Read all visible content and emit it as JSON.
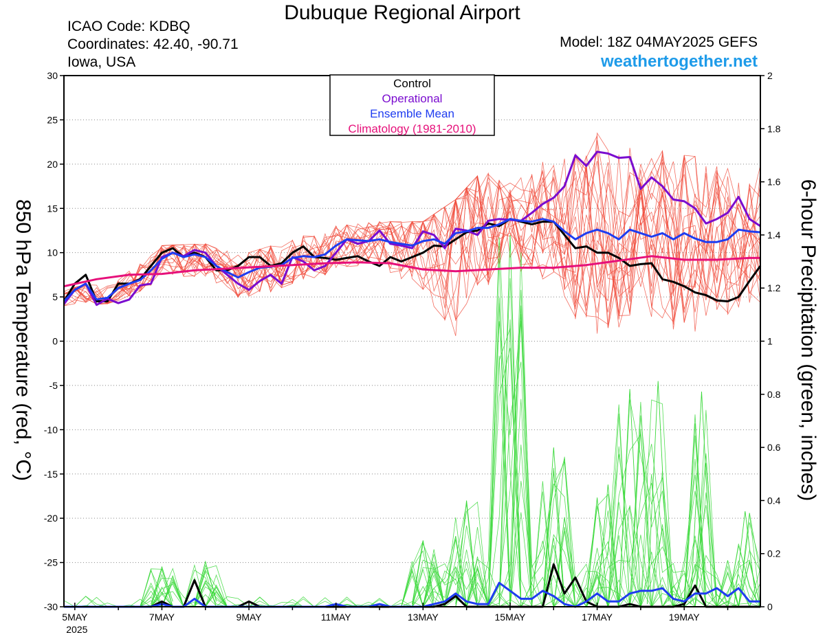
{
  "header": {
    "title": "Dubuque Regional Airport",
    "icao_line": "ICAO Code: KDBQ",
    "coords_line": "Coordinates: 42.40, -90.71",
    "region_line": "Iowa, USA",
    "model_line": "Model: 18Z 04MAY2025 GEFS",
    "site_line": "weathertogether.net"
  },
  "colors": {
    "control": "#000000",
    "operational": "#7a0ccf",
    "ensemble_mean": "#1e3cf0",
    "climatology": "#e6107a",
    "members_temp": "#f04a3a",
    "members_precip": "#38d838",
    "site": "#1e9be9"
  },
  "chart_data": {
    "type": "line",
    "xlabel": "",
    "ylabel": "850 hPa Temperature (red, °C)",
    "y2label": "6-hour Precipitation (green, inches)",
    "x_ticks": [
      "5MAY",
      "7MAY",
      "9MAY",
      "11MAY",
      "13MAY",
      "15MAY",
      "17MAY",
      "19MAY"
    ],
    "x_tick_days": [
      5,
      7,
      9,
      11,
      13,
      15,
      17,
      19
    ],
    "x_sublabel": "2025",
    "xlim": [
      4.75,
      20.75
    ],
    "ylim": [
      -30,
      30
    ],
    "y_ticks": [
      30,
      25,
      20,
      15,
      10,
      5,
      0,
      -5,
      -10,
      -15,
      -20,
      -25,
      -30
    ],
    "y2lim": [
      0,
      2
    ],
    "y2_ticks": [
      2,
      1.8,
      1.6,
      1.4,
      1.2,
      1,
      0.8,
      0.6,
      0.4,
      0.2,
      0
    ],
    "grid": true,
    "legend": {
      "position": "top-center",
      "entries": [
        "Control",
        "Operational",
        "Ensemble Mean",
        "Climatology (1981-2010)"
      ]
    },
    "series": [
      {
        "name": "Control",
        "axis": "left",
        "x": [
          4.75,
          5,
          5.25,
          5.5,
          5.75,
          6,
          6.25,
          6.5,
          6.75,
          7,
          7.25,
          7.5,
          7.75,
          8,
          8.25,
          8.5,
          8.75,
          9,
          9.25,
          9.5,
          9.75,
          10,
          10.25,
          10.5,
          10.75,
          11,
          11.25,
          11.5,
          11.75,
          12,
          12.25,
          12.5,
          12.75,
          13,
          13.25,
          13.5,
          13.75,
          14,
          14.25,
          14.5,
          14.75,
          15,
          15.25,
          15.5,
          15.75,
          16,
          16.25,
          16.5,
          16.75,
          17,
          17.25,
          17.5,
          17.75,
          18,
          18.25,
          18.5,
          18.75,
          19,
          19.25,
          19.5,
          19.75,
          20,
          20.25,
          20.5,
          20.75
        ],
        "y": [
          4.5,
          6.5,
          7.5,
          4.5,
          4.5,
          6.5,
          6.5,
          7,
          8.5,
          10,
          10.5,
          9.5,
          10,
          9.5,
          8,
          8,
          8.5,
          9.5,
          9.5,
          8.5,
          8.8,
          10,
          10.7,
          9.5,
          9.4,
          9.2,
          9.4,
          9.6,
          9,
          8.5,
          9.5,
          9,
          9.5,
          10,
          10.8,
          10.7,
          11.5,
          12.3,
          12.5,
          13.3,
          13,
          13.8,
          13.5,
          13.2,
          13.5,
          13.5,
          12,
          10.5,
          10.7,
          10,
          10,
          9.4,
          8.5,
          8.7,
          8.8,
          7,
          6.7,
          6.2,
          5.5,
          5.2,
          4.6,
          4.5,
          5,
          6.8,
          8.5
        ]
      },
      {
        "name": "Operational",
        "axis": "left",
        "x": [
          4.75,
          5,
          5.25,
          5.5,
          5.75,
          6,
          6.25,
          6.5,
          6.75,
          7,
          7.25,
          7.5,
          7.75,
          8,
          8.25,
          8.5,
          8.75,
          9,
          9.25,
          9.5,
          9.75,
          10,
          10.25,
          10.5,
          10.75,
          11,
          11.25,
          11.5,
          11.75,
          12,
          12.25,
          12.5,
          12.75,
          13,
          13.25,
          13.5,
          13.75,
          14,
          14.25,
          14.5,
          14.75,
          15,
          15.25,
          15.5,
          15.75,
          16,
          16.25,
          16.5,
          16.75,
          17,
          17.25,
          17.5,
          17.75,
          18,
          18.25,
          18.5,
          18.75,
          19,
          19.25,
          19.5,
          19.75,
          20,
          20.25,
          20.5,
          20.75
        ],
        "y": [
          4.2,
          5.8,
          6.5,
          4.1,
          4.8,
          4.3,
          4.7,
          6.3,
          6.5,
          9.5,
          10,
          9.6,
          10.3,
          10,
          8.5,
          7.5,
          6.5,
          5.8,
          6.8,
          7.5,
          6.5,
          9.5,
          9,
          8,
          8.5,
          10,
          11.5,
          11,
          11.3,
          12.5,
          11,
          10.8,
          10.5,
          12.4,
          12,
          10.5,
          12.7,
          12.5,
          12,
          13.6,
          13.8,
          13.7,
          13.6,
          14.5,
          15.5,
          16.2,
          17.5,
          21,
          19.8,
          21.4,
          21.2,
          20.7,
          20.8,
          17.2,
          18.5,
          17.5,
          16,
          15.8,
          15,
          13.3,
          13.8,
          14.5,
          16.3,
          13.8,
          13
        ]
      },
      {
        "name": "Ensemble Mean",
        "axis": "left",
        "x": [
          4.75,
          5,
          5.25,
          5.5,
          5.75,
          6,
          6.25,
          6.5,
          6.75,
          7,
          7.25,
          7.5,
          7.75,
          8,
          8.25,
          8.5,
          8.75,
          9,
          9.25,
          9.5,
          9.75,
          10,
          10.25,
          10.5,
          10.75,
          11,
          11.25,
          11.5,
          11.75,
          12,
          12.25,
          12.5,
          12.75,
          13,
          13.25,
          13.5,
          13.75,
          14,
          14.25,
          14.5,
          14.75,
          15,
          15.25,
          15.5,
          15.75,
          16,
          16.25,
          16.5,
          16.75,
          17,
          17.25,
          17.5,
          17.75,
          18,
          18.25,
          18.5,
          18.75,
          19,
          19.25,
          19.5,
          19.75,
          20,
          20.25,
          20.5,
          20.75
        ],
        "y": [
          4.5,
          5.8,
          6.5,
          4.7,
          4.9,
          6,
          6.5,
          6.9,
          8,
          9.3,
          10,
          9.5,
          9.8,
          9.5,
          8.5,
          7.8,
          7.2,
          7.8,
          8.3,
          8.4,
          8.6,
          9.4,
          9.6,
          9.5,
          9.8,
          10.8,
          11.5,
          11.4,
          11.3,
          11.5,
          11.2,
          11,
          10.8,
          11.3,
          11.5,
          11,
          12.2,
          12.4,
          12.8,
          12.8,
          13.2,
          13.8,
          13.6,
          13.5,
          13.8,
          13.5,
          12.4,
          11.5,
          12.2,
          12.6,
          12.2,
          11.5,
          12.6,
          12.2,
          11.8,
          12.2,
          11.5,
          12.2,
          11.6,
          11.2,
          11.2,
          11.5,
          12.6,
          12.4,
          12.3
        ]
      },
      {
        "name": "Climatology (1981-2010)",
        "axis": "left",
        "x": [
          4.75,
          5.5,
          6.25,
          7,
          7.75,
          8.5,
          9.25,
          10,
          10.75,
          11.5,
          12.25,
          13,
          13.75,
          14.5,
          15.25,
          16,
          16.75,
          17.5,
          18.25,
          19,
          19.75,
          20.5,
          20.75
        ],
        "y": [
          6.2,
          7,
          7.5,
          7.6,
          8,
          8.2,
          8.4,
          8.6,
          8.8,
          8.9,
          8.8,
          8.1,
          7.9,
          8.1,
          8.3,
          8.3,
          8.6,
          9.1,
          9.6,
          9.2,
          9.2,
          9.4,
          9.4
        ]
      },
      {
        "name": "Control",
        "axis": "right",
        "x": [
          4.75,
          5,
          5.25,
          5.5,
          5.75,
          6,
          6.25,
          6.5,
          6.75,
          7,
          7.25,
          7.5,
          7.75,
          8,
          8.25,
          8.5,
          8.75,
          9,
          9.25,
          9.5,
          9.75,
          10,
          10.25,
          10.5,
          10.75,
          11,
          11.25,
          11.5,
          11.75,
          12,
          12.25,
          12.5,
          12.75,
          13,
          13.25,
          13.5,
          13.75,
          14,
          14.25,
          14.5,
          14.75,
          15,
          15.25,
          15.5,
          15.75,
          16,
          16.25,
          16.5,
          16.75,
          17,
          17.25,
          17.5,
          17.75,
          18,
          18.25,
          18.5,
          18.75,
          19,
          19.25,
          19.5,
          19.75,
          20,
          20.25,
          20.5,
          20.75
        ],
        "y": [
          0,
          0,
          0,
          0,
          0,
          0,
          0,
          0,
          0,
          0.02,
          0,
          0,
          0.1,
          0,
          0,
          0,
          0,
          0.02,
          0,
          0,
          0,
          0,
          0,
          0,
          0,
          0,
          0,
          0,
          0,
          0,
          0,
          0,
          0,
          0,
          0,
          0.01,
          0.04,
          0,
          0,
          0,
          0,
          0,
          0,
          0,
          0,
          0.16,
          0.05,
          0.11,
          0.02,
          0,
          0,
          0,
          0.01,
          0,
          0,
          0,
          0,
          0.01,
          0.08,
          0,
          0,
          0,
          0,
          0,
          0
        ]
      },
      {
        "name": "Ensemble Mean",
        "axis": "right",
        "x": [
          4.75,
          5,
          5.25,
          5.5,
          5.75,
          6,
          6.25,
          6.5,
          6.75,
          7,
          7.25,
          7.5,
          7.75,
          8,
          8.25,
          8.5,
          8.75,
          9,
          9.25,
          9.5,
          9.75,
          10,
          10.25,
          10.5,
          10.75,
          11,
          11.25,
          11.5,
          11.75,
          12,
          12.25,
          12.5,
          12.75,
          13,
          13.25,
          13.5,
          13.75,
          14,
          14.25,
          14.5,
          14.75,
          15,
          15.25,
          15.5,
          15.75,
          16,
          16.25,
          16.5,
          16.75,
          17,
          17.25,
          17.5,
          17.75,
          18,
          18.25,
          18.5,
          18.75,
          19,
          19.25,
          19.5,
          19.75,
          20,
          20.25,
          20.5,
          20.75
        ],
        "y": [
          0,
          0,
          0,
          0,
          0,
          0,
          0,
          0,
          0,
          0.01,
          0,
          0,
          0.03,
          0,
          0,
          0,
          0,
          0,
          0,
          0,
          0,
          0,
          0,
          0,
          0,
          0.01,
          0,
          0,
          0,
          0.01,
          0,
          0,
          0,
          0,
          0.01,
          0.02,
          0.05,
          0.02,
          0.01,
          0.01,
          0.09,
          0.06,
          0.03,
          0.03,
          0.06,
          0.04,
          0.01,
          0,
          0.02,
          0.05,
          0.02,
          0.02,
          0.05,
          0.06,
          0.06,
          0.07,
          0.03,
          0.02,
          0.05,
          0.05,
          0.07,
          0.04,
          0.07,
          0.02,
          0.02
        ]
      }
    ],
    "member_bands": {
      "temperature_upper_approx": [
        [
          4.75,
          5.8
        ],
        [
          6,
          7.2
        ],
        [
          7,
          10.8
        ],
        [
          8,
          11
        ],
        [
          9,
          10
        ],
        [
          10,
          11.5
        ],
        [
          11,
          13
        ],
        [
          12,
          13.5
        ],
        [
          13,
          13.5
        ],
        [
          13.75,
          16
        ],
        [
          14.5,
          20
        ],
        [
          15,
          19
        ],
        [
          16,
          21
        ],
        [
          16.5,
          22.5
        ],
        [
          17,
          23.5
        ],
        [
          18,
          22
        ],
        [
          19,
          21
        ],
        [
          20,
          20.5
        ],
        [
          20.75,
          21
        ]
      ],
      "temperature_lower_approx": [
        [
          4.75,
          4
        ],
        [
          6,
          4.3
        ],
        [
          7,
          7
        ],
        [
          8,
          7
        ],
        [
          9,
          4.3
        ],
        [
          10,
          6
        ],
        [
          11,
          8
        ],
        [
          12,
          8
        ],
        [
          13,
          5
        ],
        [
          13.75,
          -2.2
        ],
        [
          14.5,
          6
        ],
        [
          15,
          8
        ],
        [
          16,
          5
        ],
        [
          16.5,
          2.5
        ],
        [
          17,
          -0.5
        ],
        [
          18,
          2.5
        ],
        [
          19,
          -0.8
        ],
        [
          20,
          2
        ],
        [
          20.75,
          3.5
        ]
      ],
      "precipitation_peaks_approx": [
        {
          "x": 7,
          "y": 0.15
        },
        {
          "x": 8,
          "y": 0.17
        },
        {
          "x": 13,
          "y": 0.25
        },
        {
          "x": 14,
          "y": 0.4
        },
        {
          "x": 15,
          "y": 1.4
        },
        {
          "x": 16,
          "y": 0.6
        },
        {
          "x": 17.25,
          "y": 0.46
        },
        {
          "x": 17.75,
          "y": 0.82
        },
        {
          "x": 18.4,
          "y": 0.85
        },
        {
          "x": 19.4,
          "y": 0.81
        },
        {
          "x": 20.4,
          "y": 0.36
        }
      ]
    }
  }
}
